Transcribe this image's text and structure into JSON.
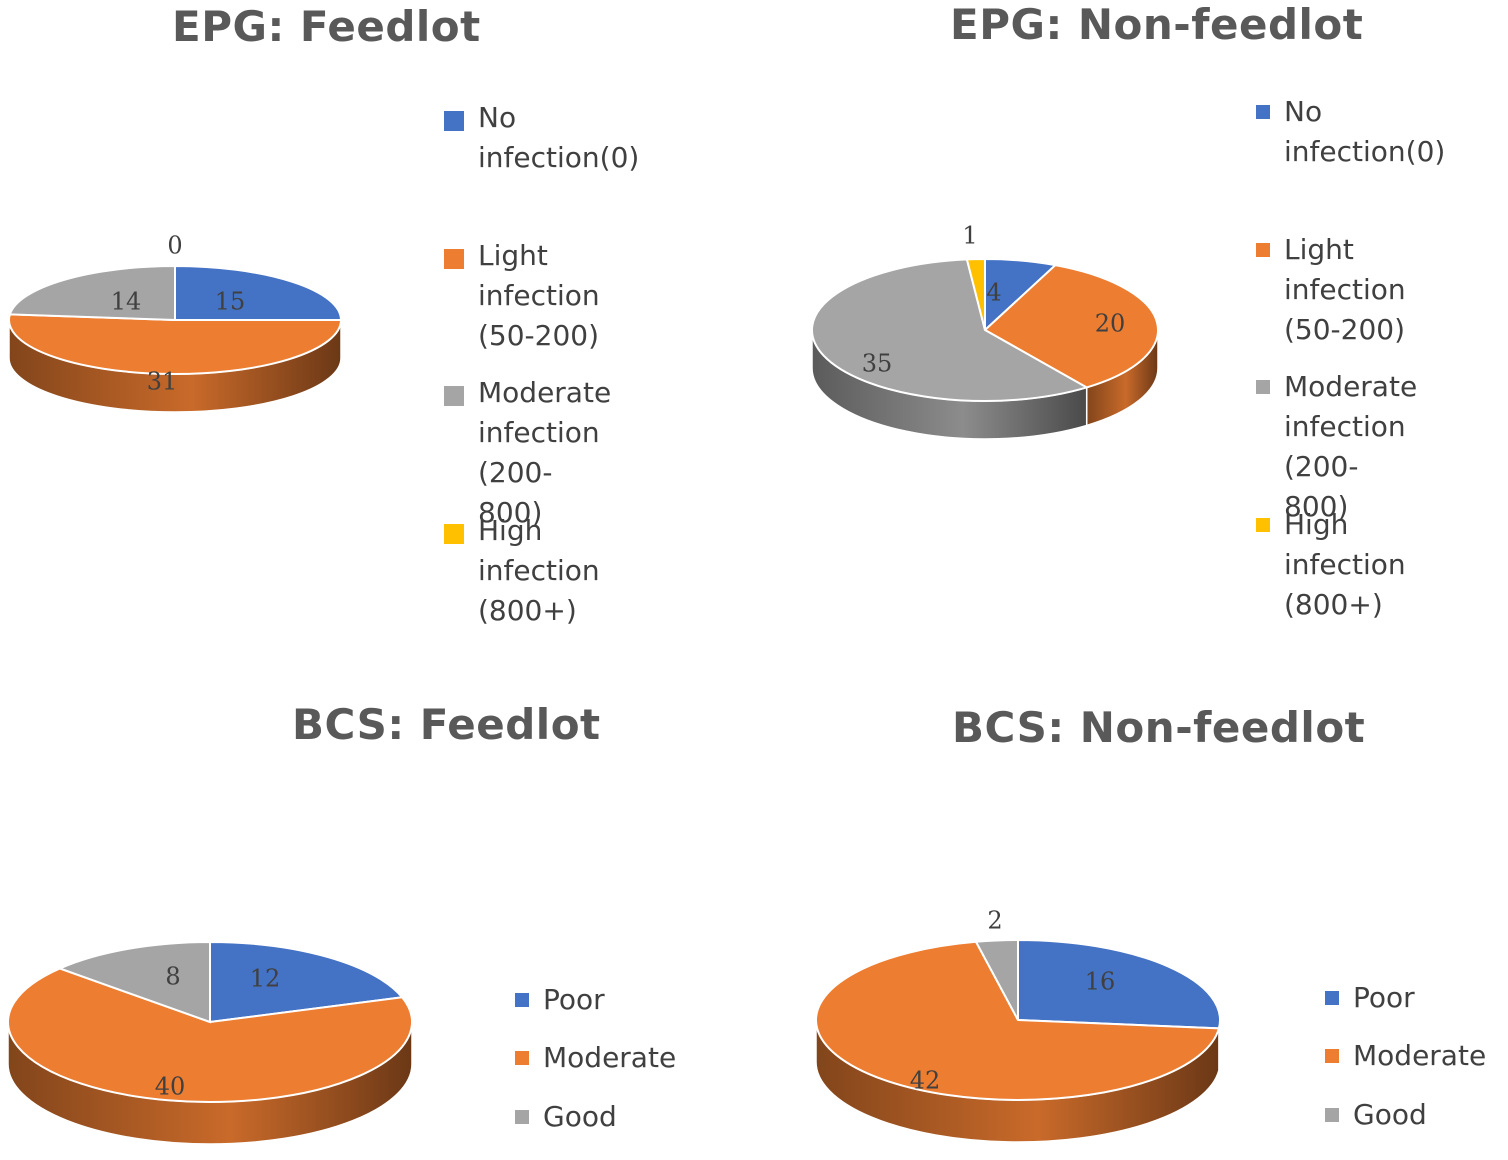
{
  "colors": {
    "blue": "#4472C4",
    "orange": "#ED7D31",
    "gray": "#A5A5A5",
    "yellow": "#FFC000",
    "title": "#595959",
    "text": "#404040"
  },
  "chart_data": [
    {
      "type": "pie",
      "title": "EPG: Feedlot",
      "categories": [
        "No infection(0)",
        "Light infection (50-200)",
        "Moderate infection (200-800)",
        "High infection (800+)"
      ],
      "values": [
        15,
        31,
        14,
        0
      ],
      "data_labels": [
        "15",
        "31",
        "14",
        "0"
      ],
      "legend": [
        {
          "label": "No\ninfection(0)",
          "color": "blue"
        },
        {
          "label": "Light infection\n(50-200)",
          "color": "orange"
        },
        {
          "label": "Moderate\ninfection (200-\n800)",
          "color": "gray"
        },
        {
          "label": "High infection\n(800+)",
          "color": "yellow"
        }
      ],
      "legend_position": "right"
    },
    {
      "type": "pie",
      "title": "EPG: Non-feedlot",
      "categories": [
        "No infection(0)",
        "Light infection (50-200)",
        "Moderate infection (200-800)",
        "High infection (800+)"
      ],
      "values": [
        4,
        20,
        35,
        1
      ],
      "data_labels": [
        "4",
        "20",
        "35",
        "1"
      ],
      "legend": [
        {
          "label": "No\ninfection(0)",
          "color": "blue"
        },
        {
          "label": "Light infection\n(50-200)",
          "color": "orange"
        },
        {
          "label": "Moderate\ninfection (200-\n800)",
          "color": "gray"
        },
        {
          "label": "High infection\n(800+)",
          "color": "yellow"
        }
      ],
      "legend_position": "right"
    },
    {
      "type": "pie",
      "title": "BCS: Feedlot",
      "categories": [
        "Poor",
        "Moderate",
        "Good"
      ],
      "values": [
        12,
        40,
        8
      ],
      "data_labels": [
        "12",
        "40",
        "8"
      ],
      "legend": [
        {
          "label": "Poor",
          "color": "blue"
        },
        {
          "label": "Moderate",
          "color": "orange"
        },
        {
          "label": "Good",
          "color": "gray"
        }
      ],
      "legend_position": "right"
    },
    {
      "type": "pie",
      "title": "BCS: Non-feedlot",
      "categories": [
        "Poor",
        "Moderate",
        "Good"
      ],
      "values": [
        16,
        42,
        2
      ],
      "data_labels": [
        "16",
        "42",
        "2"
      ],
      "legend": [
        {
          "label": "Poor",
          "color": "blue"
        },
        {
          "label": "Moderate",
          "color": "orange"
        },
        {
          "label": "Good",
          "color": "gray"
        }
      ],
      "legend_position": "right"
    }
  ]
}
